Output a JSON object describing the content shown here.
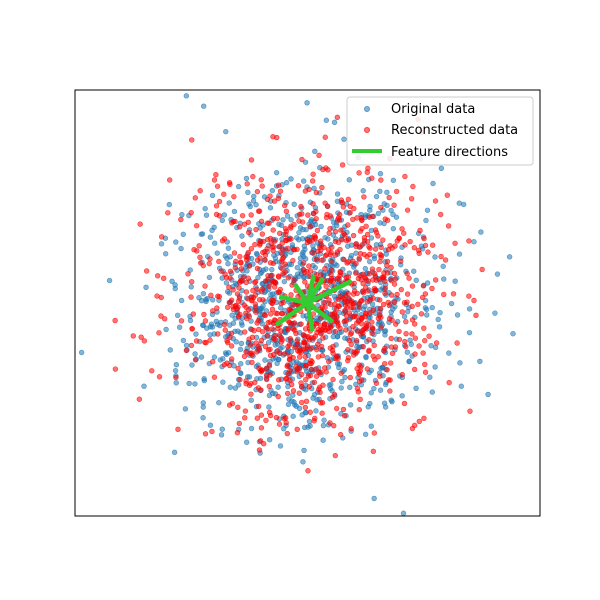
{
  "chart_data": {
    "type": "scatter",
    "title": "",
    "xlabel": "",
    "ylabel": "",
    "xlim": [
      -3.7,
      3.7
    ],
    "ylim": [
      -3.4,
      3.4
    ],
    "xticks": [],
    "yticks": [],
    "grid": false,
    "legend_position": "top-right",
    "center": [
      0.0,
      0.0
    ],
    "series": [
      {
        "name": "Original data",
        "type": "scatter",
        "color": "#1f77b4",
        "alpha": 0.55,
        "distribution": "isotropic gaussian",
        "mean": [
          0.0,
          0.0
        ],
        "std": 1.0,
        "n_points": 1000,
        "random_seed": 7
      },
      {
        "name": "Reconstructed data",
        "type": "scatter",
        "color": "#ff0000",
        "alpha": 0.55,
        "distribution": "isotropic gaussian",
        "mean": [
          0.0,
          0.0
        ],
        "std": 1.0,
        "n_points": 1000,
        "random_seed": 13
      },
      {
        "name": "Feature directions",
        "type": "line_segments",
        "color": "#33cc33",
        "origin": [
          0.0,
          0.0
        ],
        "vectors": [
          [
            0.7,
            0.35
          ],
          [
            0.1,
            0.45
          ],
          [
            -0.45,
            0.1
          ],
          [
            -0.5,
            -0.35
          ],
          [
            0.4,
            -0.3
          ],
          [
            0.08,
            -0.45
          ],
          [
            0.25,
            0.4
          ],
          [
            -0.2,
            0.3
          ]
        ]
      }
    ]
  }
}
